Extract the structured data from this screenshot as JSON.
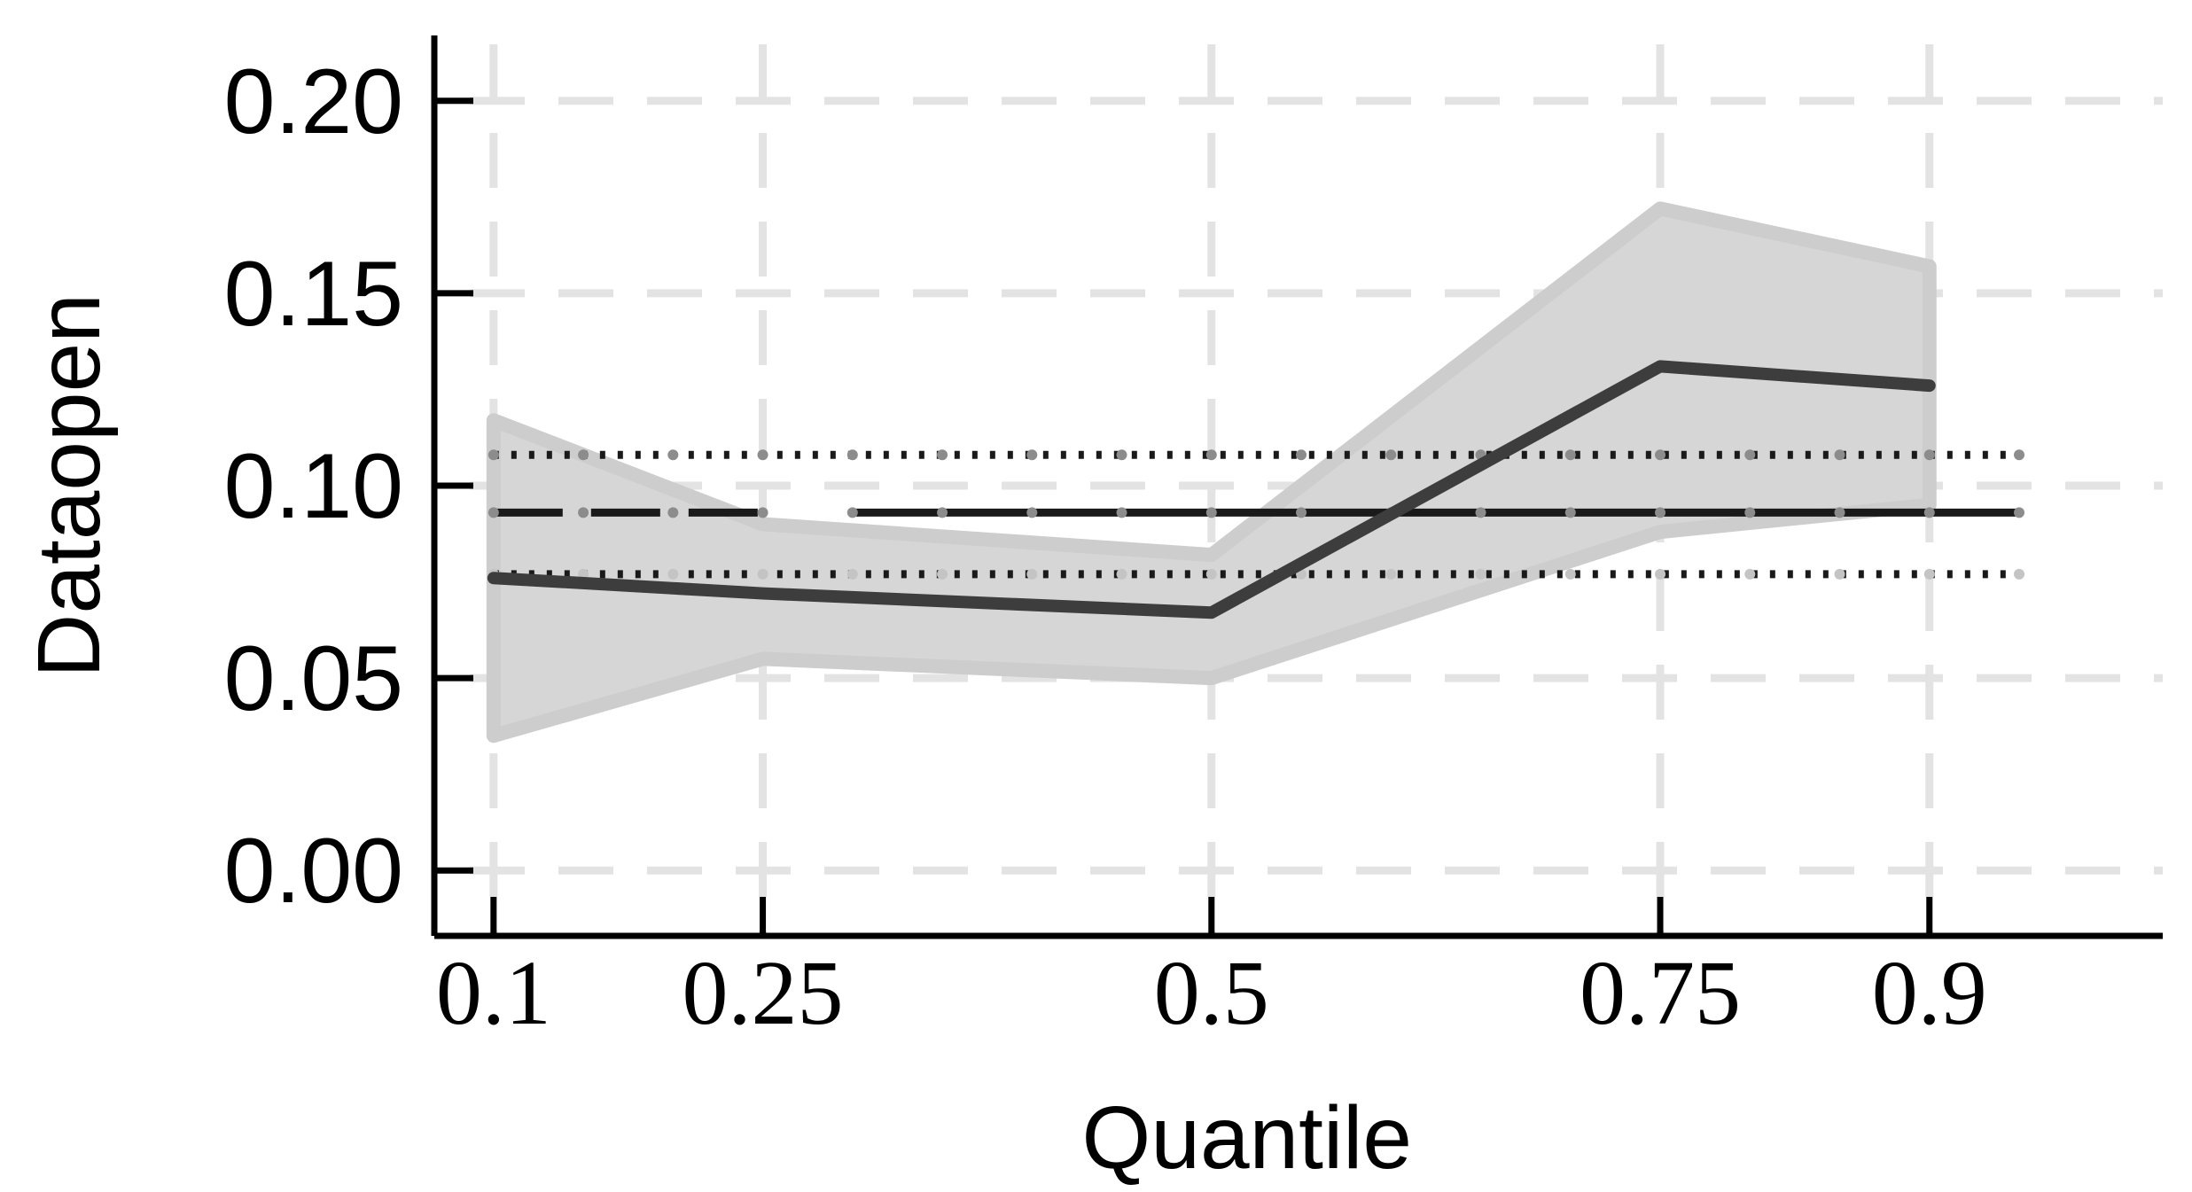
{
  "chart_data": {
    "type": "line",
    "xlabel": "Quantile",
    "ylabel": "Dataopen",
    "x_tick_labels": [
      "0.1",
      "0.25",
      "0.5",
      "0.75",
      "0.9"
    ],
    "y_tick_labels": [
      "0.00",
      "0.05",
      "0.10",
      "0.15",
      "0.20"
    ],
    "xlim": [
      0.067,
      1.03
    ],
    "ylim": [
      -0.017,
      0.217
    ],
    "x_ticks": [
      0.1,
      0.25,
      0.5,
      0.75,
      0.9
    ],
    "y_ticks": [
      0.0,
      0.05,
      0.1,
      0.15,
      0.2
    ],
    "grid": true,
    "quantile_estimates": {
      "x": [
        0.1,
        0.25,
        0.5,
        0.75,
        0.9
      ],
      "y": [
        0.076,
        0.072,
        0.067,
        0.131,
        0.126
      ],
      "ci_lower": [
        0.035,
        0.055,
        0.05,
        0.088,
        0.095
      ],
      "ci_upper": [
        0.117,
        0.09,
        0.082,
        0.172,
        0.157
      ]
    },
    "ols_estimate": {
      "x_range": [
        0.1,
        0.95
      ],
      "value": 0.093,
      "ci_lower": 0.077,
      "ci_upper": 0.108
    },
    "colors": {
      "band": "#d6d6d6",
      "quantile_line": "#3d3d3d",
      "ols_line": "#1a1a1a"
    }
  }
}
